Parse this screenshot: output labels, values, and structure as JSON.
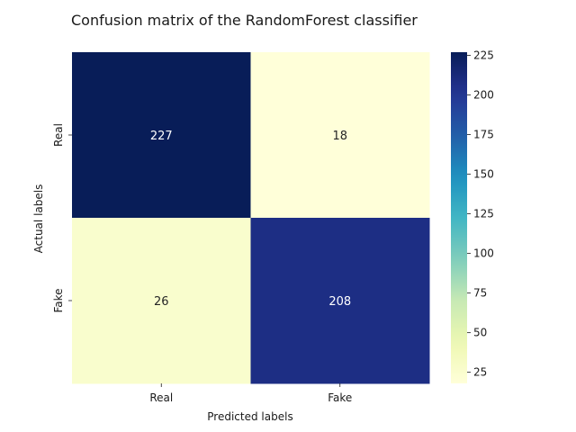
{
  "chart_data": {
    "type": "heatmap",
    "title": "Confusion matrix of the RandomForest classifier",
    "xlabel": "Predicted labels",
    "ylabel": "Actual labels",
    "x_categories": [
      "Real",
      "Fake"
    ],
    "y_categories": [
      "Real",
      "Fake"
    ],
    "values": [
      [
        227,
        18
      ],
      [
        26,
        208
      ]
    ],
    "colormap": "YlGnBu",
    "colorbar": {
      "vmin": 18,
      "vmax": 227,
      "ticks": [
        25,
        50,
        75,
        100,
        125,
        150,
        175,
        200,
        225
      ]
    },
    "grid": false,
    "legend": "colorbar-right"
  }
}
